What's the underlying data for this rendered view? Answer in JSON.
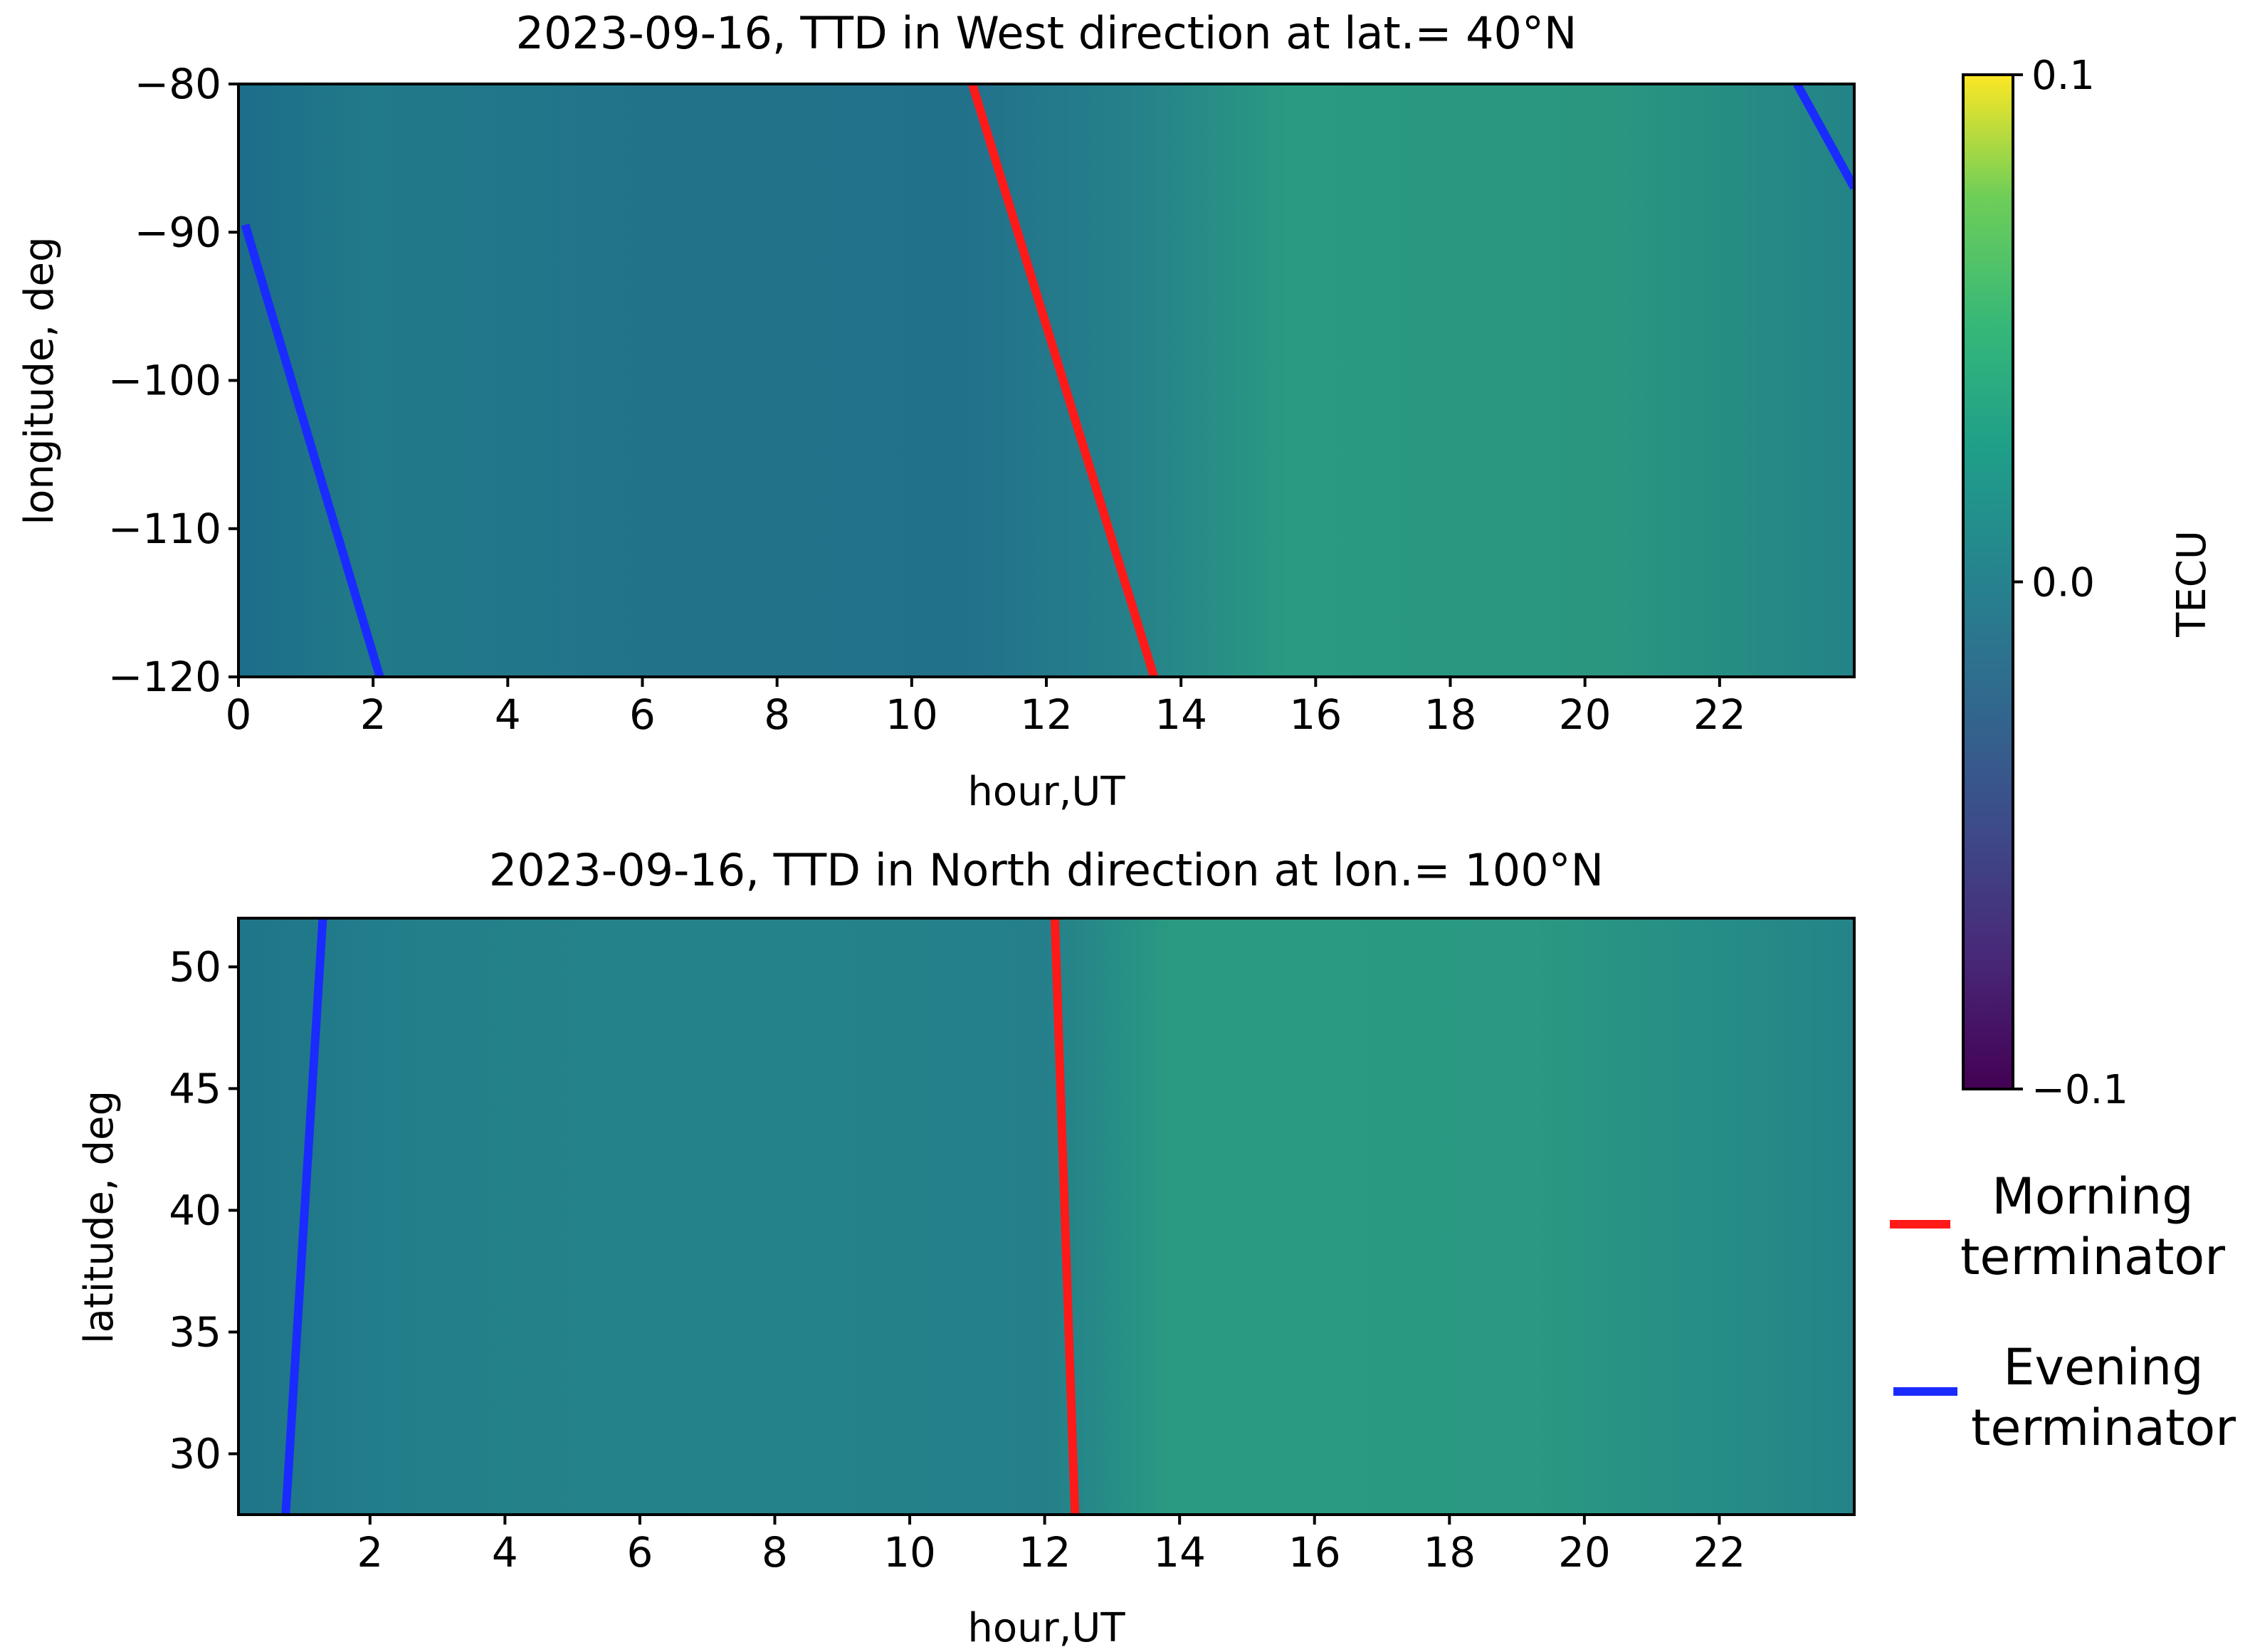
{
  "colors": {
    "morning": "#ff1a1a",
    "evening": "#1a2bff",
    "colormap": "viridis"
  },
  "chart_data": [
    {
      "type": "heatmap",
      "title": "2023-09-16, TTD in West direction at lat.= 40°N",
      "xlabel": "hour,UT",
      "ylabel": "longitude, deg",
      "xlim": [
        0,
        24
      ],
      "ylim": [
        -120,
        -80
      ],
      "xticks": [
        0,
        2,
        4,
        6,
        8,
        10,
        12,
        14,
        16,
        18,
        20,
        22
      ],
      "xtick_labels": [
        "0",
        "2",
        "4",
        "6",
        "8",
        "10",
        "12",
        "14",
        "16",
        "18",
        "20",
        "22"
      ],
      "yticks": [
        -80,
        -90,
        -100,
        -110,
        -120
      ],
      "ytick_labels": [
        "−80",
        "−90",
        "−100",
        "−110",
        "−120"
      ],
      "series": [
        {
          "name": "Morning terminator",
          "x": [
            10.9,
            13.6
          ],
          "y": [
            -80,
            -120
          ]
        },
        {
          "name": "Evening terminator",
          "x": [
            0.1,
            2.1
          ],
          "y": [
            -89.5,
            -120
          ]
        },
        {
          "name": "Evening terminator",
          "x": [
            23.15,
            24
          ],
          "y": [
            -80,
            -87
          ]
        }
      ]
    },
    {
      "type": "heatmap",
      "title": "2023-09-16, TTD in North direction at lon.= 100°N",
      "xlabel": "hour,UT",
      "ylabel": "latitude, deg",
      "xlim": [
        0.05,
        24
      ],
      "ylim": [
        27.5,
        52
      ],
      "xticks": [
        2,
        4,
        6,
        8,
        10,
        12,
        14,
        16,
        18,
        20,
        22
      ],
      "xtick_labels": [
        "2",
        "4",
        "6",
        "8",
        "10",
        "12",
        "14",
        "16",
        "18",
        "20",
        "22"
      ],
      "yticks": [
        30,
        35,
        40,
        45,
        50
      ],
      "ytick_labels": [
        "30",
        "35",
        "40",
        "45",
        "50"
      ],
      "series": [
        {
          "name": "Morning terminator",
          "x": [
            12.15,
            12.45
          ],
          "y": [
            52,
            27.5
          ]
        },
        {
          "name": "Evening terminator",
          "x": [
            1.3,
            0.75
          ],
          "y": [
            52,
            27.5
          ]
        }
      ]
    }
  ],
  "colorbar": {
    "label": "TECU",
    "min": -0.1,
    "max": 0.1,
    "ticks": [
      0.1,
      0.0,
      -0.1
    ],
    "tick_labels": [
      "0.1",
      "0.0",
      "−0.1"
    ]
  },
  "legend": {
    "placement": "right",
    "entries": [
      {
        "lines": [
          "Morning",
          "terminator"
        ],
        "color_key": "morning"
      },
      {
        "lines": [
          "Evening",
          "terminator"
        ],
        "color_key": "evening"
      }
    ]
  }
}
